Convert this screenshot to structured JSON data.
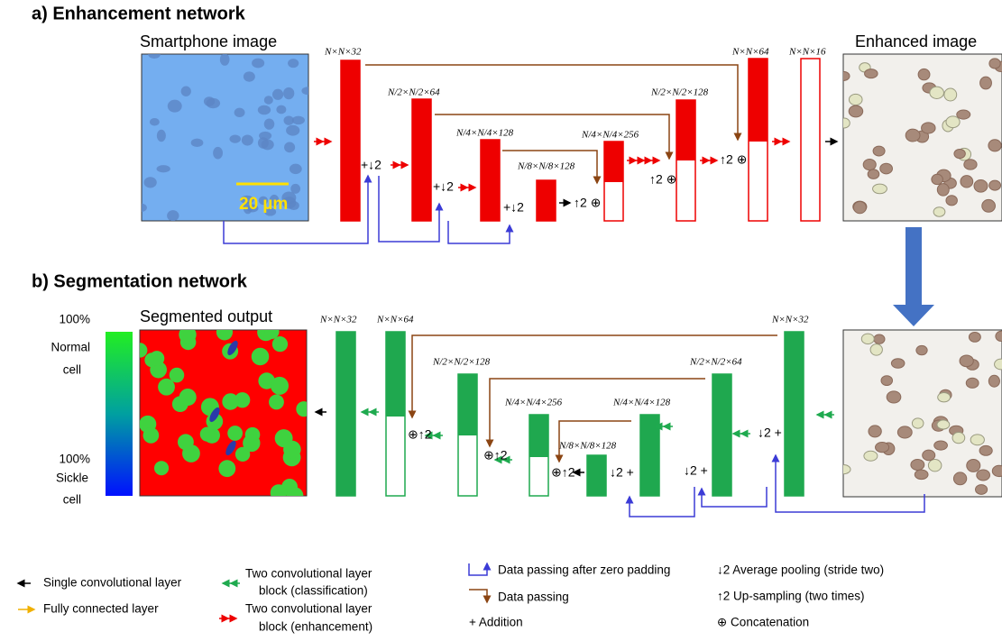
{
  "panel_a": {
    "title": "a) Enhancement network",
    "input_label": "Smartphone image",
    "output_label": "Enhanced image",
    "scale_bar": "20 µm",
    "layer_labels": [
      "N×N×32",
      "N/2×N/2×64",
      "N/4×N/4×128",
      "N/8×N/8×128",
      "N/4×N/4×256",
      "N/2×N/2×128",
      "N×N×64",
      "N×N×16"
    ],
    "ops": [
      "+↓2",
      "+↓2",
      "+↓2",
      "↑2 ⊕",
      "↑2 ⊕",
      "↑2 ⊕"
    ]
  },
  "panel_b": {
    "title": "b) Segmentation network",
    "output_label": "Segmented output",
    "colorbar_top": [
      "100%",
      "Normal",
      "cell"
    ],
    "colorbar_bottom": [
      "100%",
      "Sickle",
      "cell"
    ],
    "layer_labels": [
      "N×N×32",
      "N×N×64",
      "N/2×N/2×128",
      "N/4×N/4×256",
      "N/8×N/8×128",
      "N/4×N/4×128",
      "N/2×N/2×64",
      "N×N×32"
    ],
    "ops": [
      "⊕↑2",
      "⊕↑2",
      "⊕↑2",
      "↓2 +",
      "↓2 +",
      "↓2 +"
    ]
  },
  "legend": {
    "single_conv": "Single convolutional layer",
    "fully_connected": "Fully connected layer",
    "two_conv_class": [
      "Two convolutional layer",
      "block (classification)"
    ],
    "two_conv_enh": [
      "Two convolutional layer",
      "block (enhancement)"
    ],
    "zero_padding": "Data passing after zero padding",
    "data_passing": "Data passing",
    "addition": "+ Addition",
    "avg_pool": "↓2  Average pooling (stride two)",
    "upsampling": "↑2  Up-sampling (two times)",
    "concat": "⊕ Concatenation"
  }
}
